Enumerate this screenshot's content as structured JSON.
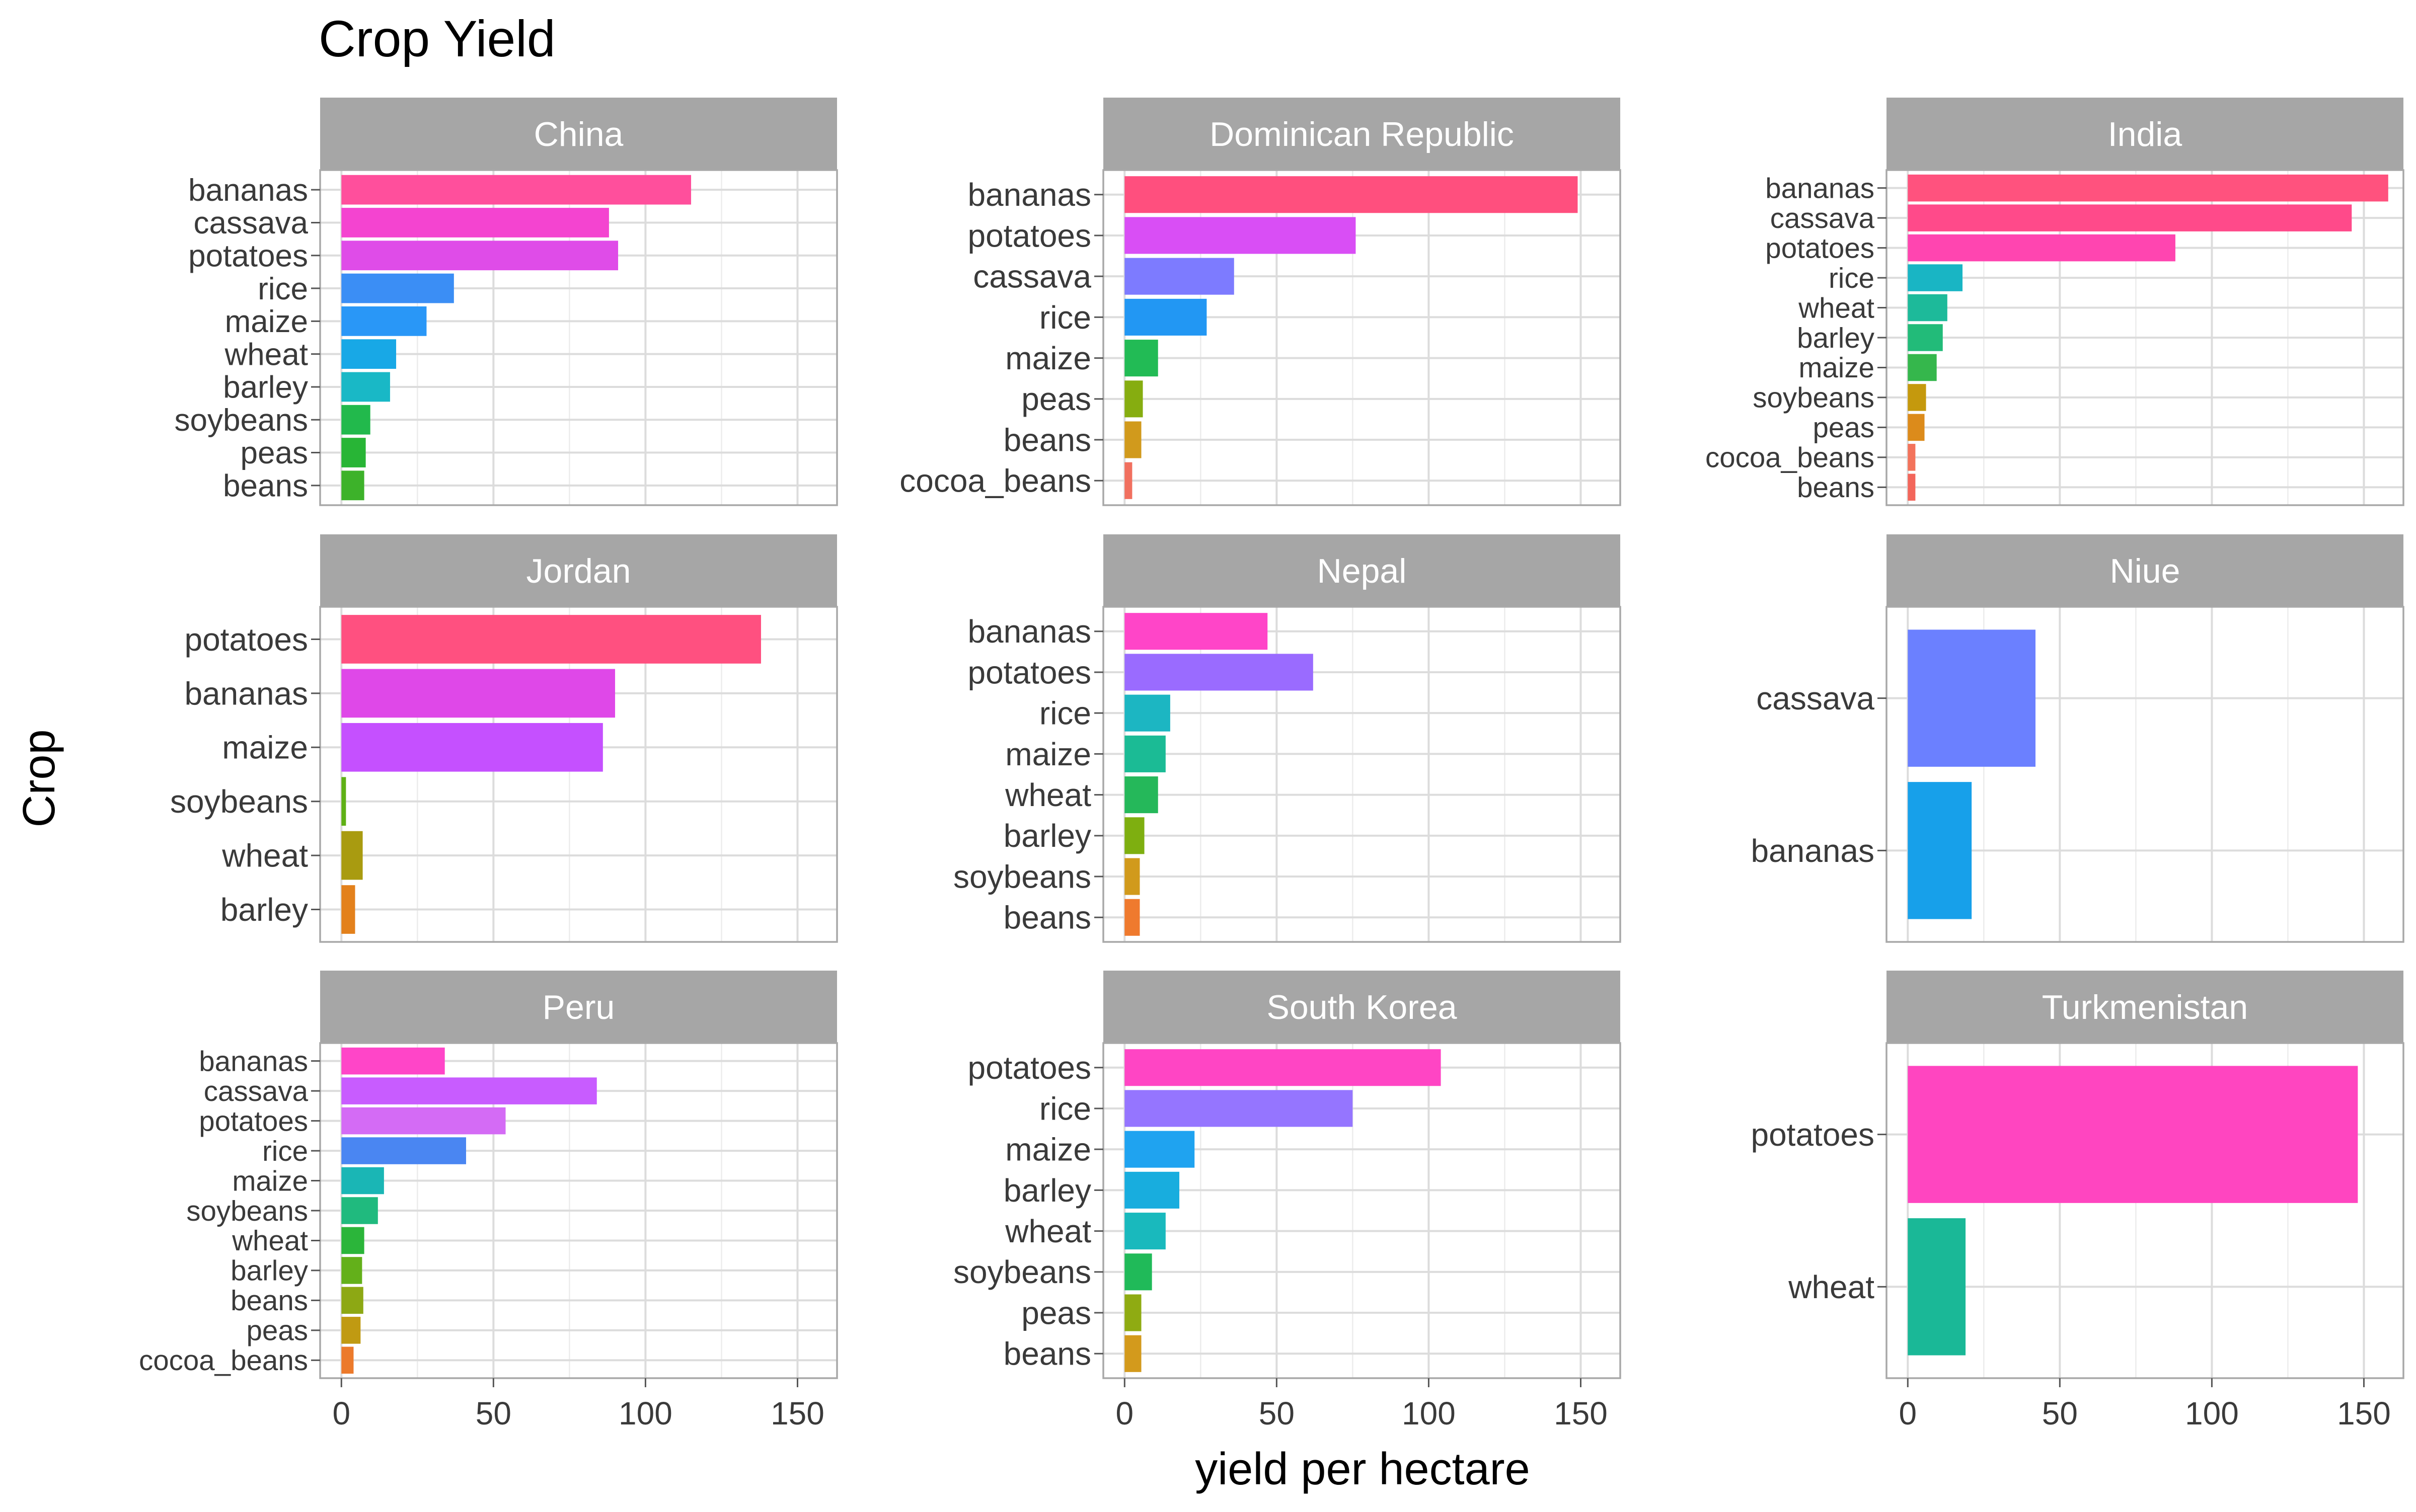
{
  "chart_data": {
    "type": "bar",
    "orientation": "horizontal",
    "title": "Crop Yield",
    "xlabel": "yield per hectare",
    "ylabel": "Crop",
    "xlim": [
      -7,
      163
    ],
    "xticks": [
      0,
      50,
      100,
      150
    ],
    "xtick_labels": [
      "0",
      "50",
      "100",
      "150"
    ],
    "grid": true,
    "legend": "none",
    "facets": [
      {
        "name": "China",
        "categories": [
          "bananas",
          "cassava",
          "potatoes",
          "rice",
          "maize",
          "wheat",
          "barley",
          "soybeans",
          "peas",
          "beans"
        ],
        "values": [
          115,
          88,
          91,
          37,
          28,
          18,
          16,
          9.5,
          8,
          7.5
        ],
        "colors": [
          "#ff4f9c",
          "#f444d0",
          "#df4ce8",
          "#3b8ef5",
          "#2997f7",
          "#18a8e6",
          "#19b8c6",
          "#22b94c",
          "#28b536",
          "#3db22a"
        ]
      },
      {
        "name": "Dominican Republic",
        "categories": [
          "bananas",
          "potatoes",
          "cassava",
          "rice",
          "maize",
          "peas",
          "beans",
          "cocoa_beans"
        ],
        "values": [
          149,
          76,
          36,
          27,
          11,
          6,
          5.5,
          2.5
        ],
        "colors": [
          "#ff4f7e",
          "#d94ef5",
          "#7d7bff",
          "#2297f3",
          "#22bb55",
          "#86ad10",
          "#d19a1c",
          "#f1705f"
        ]
      },
      {
        "name": "India",
        "categories": [
          "bananas",
          "cassava",
          "potatoes",
          "rice",
          "wheat",
          "barley",
          "maize",
          "soybeans",
          "peas",
          "cocoa_beans",
          "beans"
        ],
        "values": [
          158,
          146,
          88,
          18,
          13,
          11.5,
          9.5,
          6,
          5.5,
          2.5,
          2.5
        ],
        "colors": [
          "#ff527e",
          "#ff4a8a",
          "#ff45b0",
          "#19b5c4",
          "#1dba9a",
          "#22bb79",
          "#35b74c",
          "#c5990d",
          "#dc8b1b",
          "#f3735b",
          "#f3665b"
        ]
      },
      {
        "name": "Jordan",
        "categories": [
          "potatoes",
          "bananas",
          "maize",
          "soybeans",
          "wheat",
          "barley"
        ],
        "values": [
          138,
          90,
          86,
          1.5,
          7,
          4.5
        ],
        "colors": [
          "#ff5080",
          "#df48e8",
          "#c550ff",
          "#5fb015",
          "#a99b10",
          "#e3811c"
        ]
      },
      {
        "name": "Nepal",
        "categories": [
          "bananas",
          "potatoes",
          "rice",
          "maize",
          "wheat",
          "barley",
          "soybeans",
          "beans"
        ],
        "values": [
          47,
          62,
          15,
          13.5,
          11,
          6.5,
          5,
          5
        ],
        "colors": [
          "#ff45c8",
          "#9a6bff",
          "#1cb6c2",
          "#1bbb95",
          "#25b85a",
          "#7eaf10",
          "#d19a1c",
          "#ef7a2e"
        ]
      },
      {
        "name": "Niue",
        "categories": [
          "cassava",
          "bananas"
        ],
        "values": [
          42,
          21
        ],
        "colors": [
          "#6b80ff",
          "#17a0ea"
        ]
      },
      {
        "name": "Peru",
        "categories": [
          "bananas",
          "cassava",
          "potatoes",
          "rice",
          "maize",
          "soybeans",
          "wheat",
          "barley",
          "beans",
          "peas",
          "cocoa_beans"
        ],
        "values": [
          34,
          84,
          54,
          41,
          14,
          12,
          7.5,
          6.8,
          7.2,
          6.3,
          4
        ],
        "colors": [
          "#ff45c8",
          "#c85cff",
          "#d46bf5",
          "#4a86f2",
          "#1ab6b5",
          "#20ba7e",
          "#2bb53a",
          "#63b01a",
          "#8da814",
          "#c09a12",
          "#ec7a2b"
        ]
      },
      {
        "name": "South Korea",
        "categories": [
          "potatoes",
          "rice",
          "maize",
          "barley",
          "wheat",
          "soybeans",
          "peas",
          "beans"
        ],
        "values": [
          104,
          75,
          23,
          18,
          13.5,
          9,
          5.5,
          5.5
        ],
        "colors": [
          "#ff45c4",
          "#9575ff",
          "#1fa3f0",
          "#18adde",
          "#19b9bd",
          "#20ba59",
          "#8fab12",
          "#d39a1c"
        ]
      },
      {
        "name": "Turkmenistan",
        "categories": [
          "potatoes",
          "wheat"
        ],
        "values": [
          148,
          19
        ],
        "colors": [
          "#ff45c0",
          "#1ab897"
        ]
      }
    ]
  }
}
